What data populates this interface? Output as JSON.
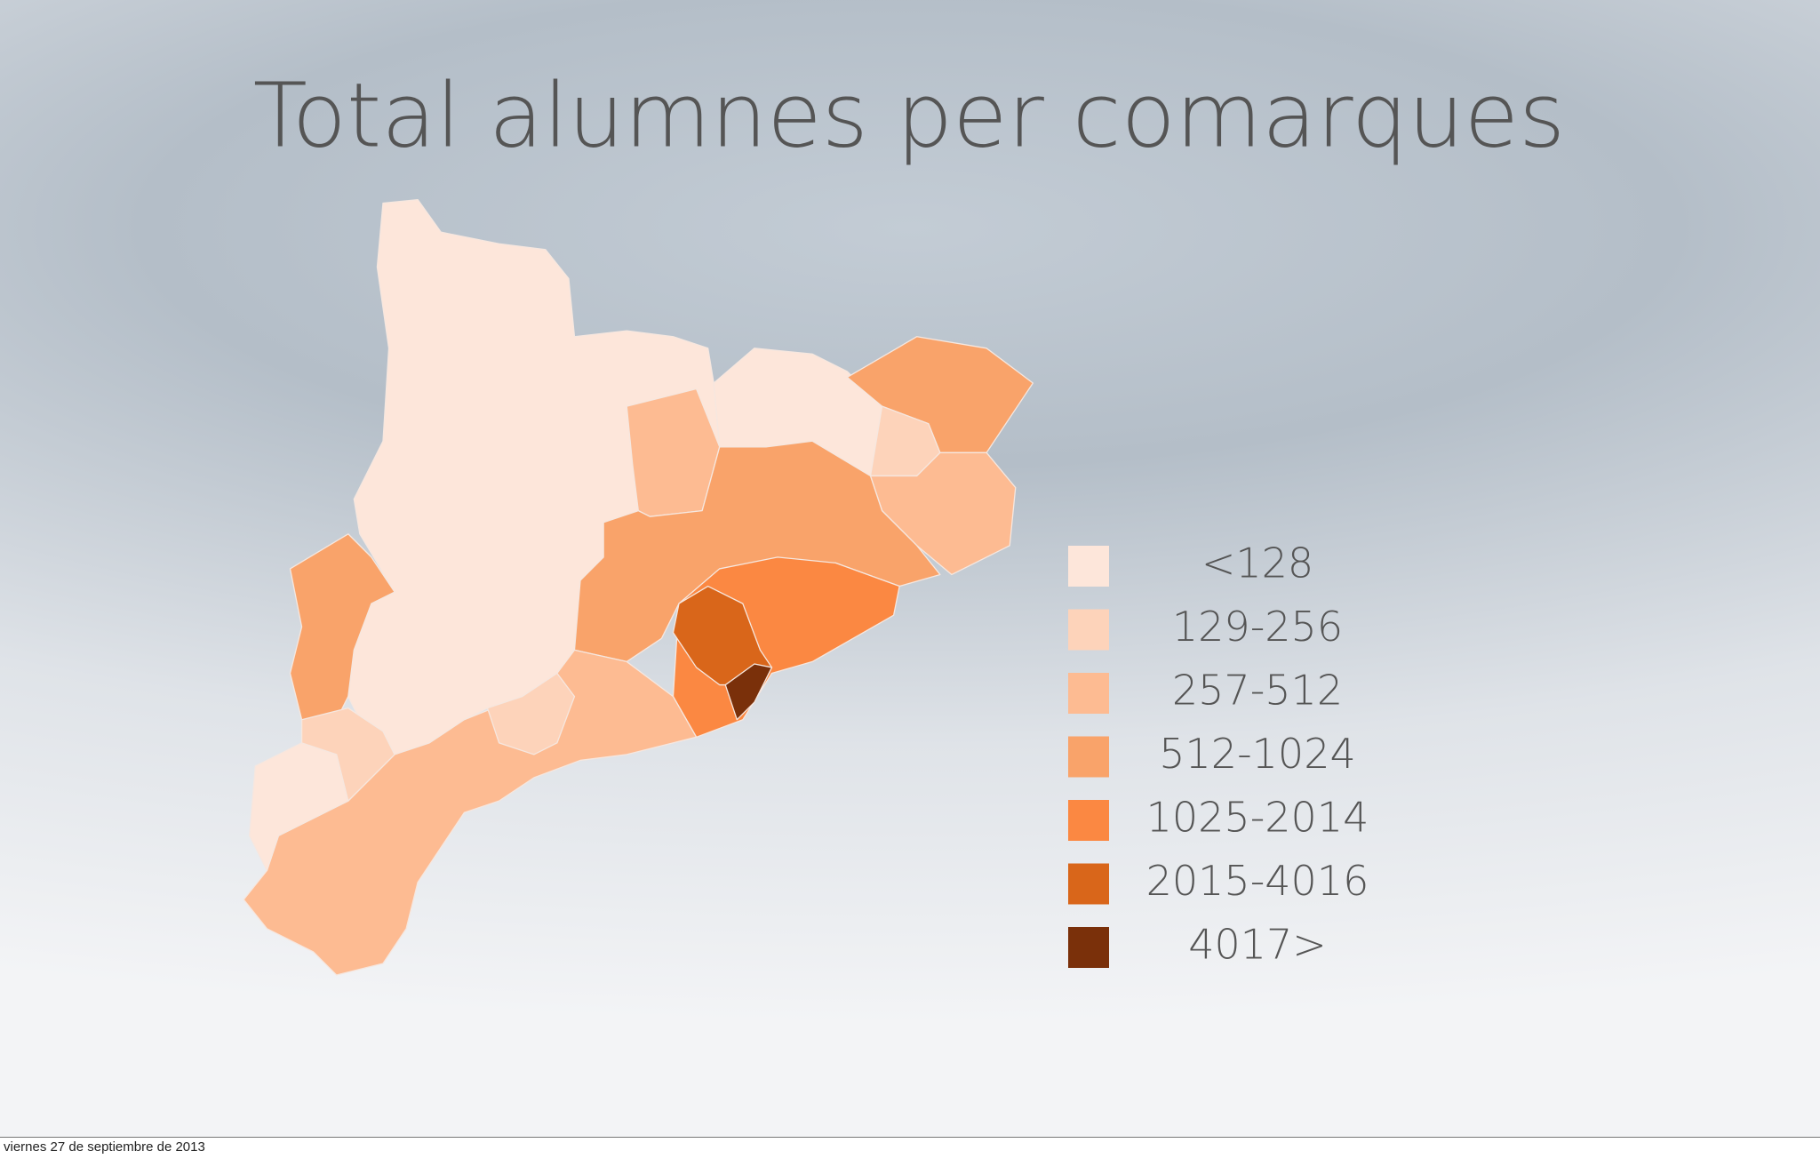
{
  "title": "Total alumnes per comarques",
  "legend": [
    {
      "label": "<128",
      "color": "#fde6da"
    },
    {
      "label": "129-256",
      "color": "#fdd3ba"
    },
    {
      "label": "257-512",
      "color": "#fdbb92"
    },
    {
      "label": "512-1024",
      "color": "#f9a36a"
    },
    {
      "label": "1025-2014",
      "color": "#fb8842"
    },
    {
      "label": "2015-4016",
      "color": "#d9661a"
    },
    {
      "label": "4017>",
      "color": "#7a300a"
    }
  ],
  "footer": "viernes 27 de septiembre de 2013"
}
